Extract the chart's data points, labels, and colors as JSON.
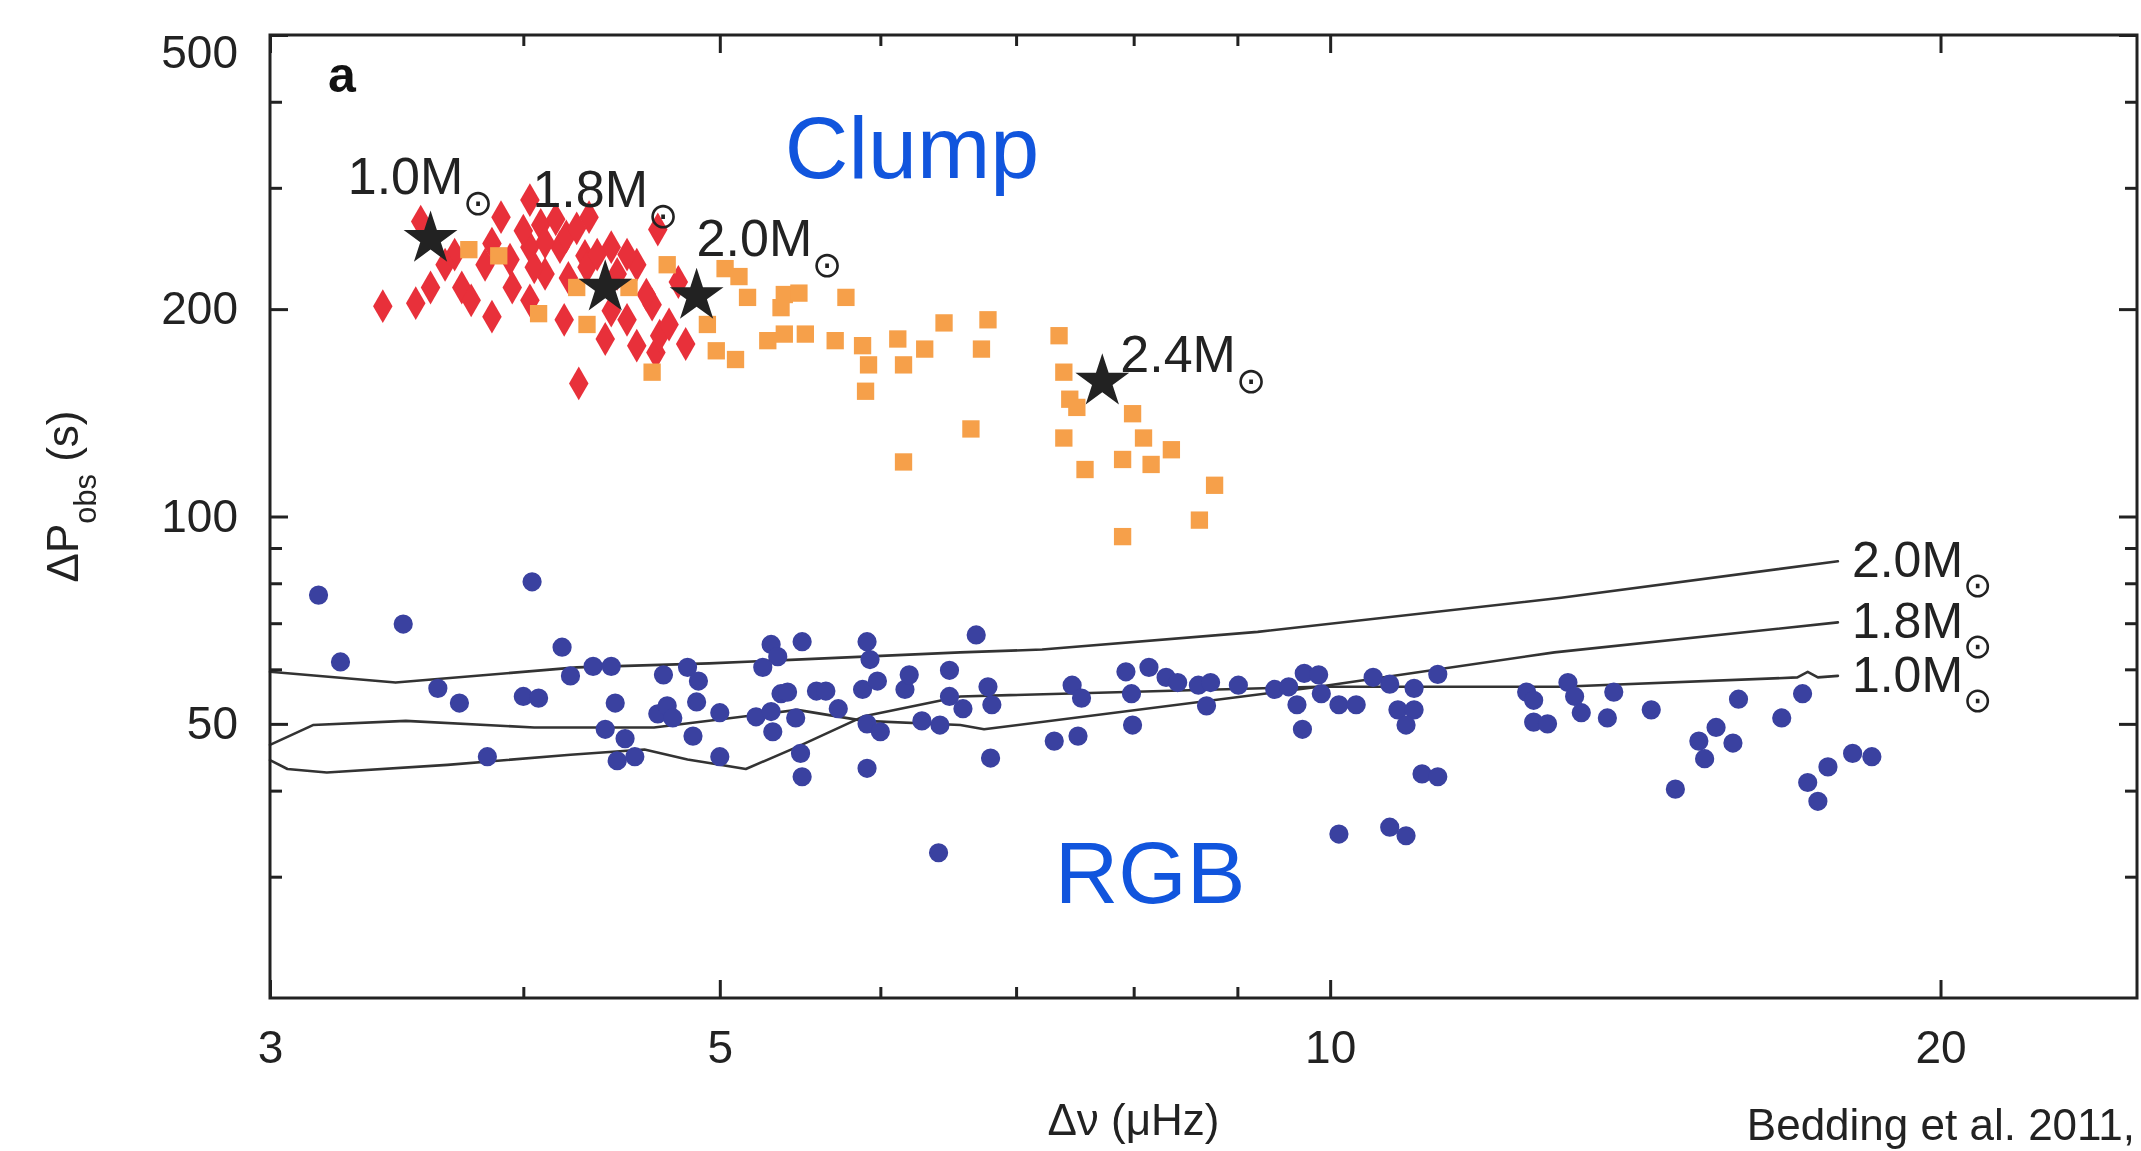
{
  "chart_data": {
    "type": "scatter",
    "xlabel": "Δν (μHz)",
    "ylabel": "ΔP$_{obs}$ (s)",
    "log": "xy",
    "xlim": [
      3,
      25
    ],
    "ylim": [
      20,
      500
    ],
    "xticks": [
      3,
      {
        "value": 4,
        "label": null
      },
      5,
      {
        "value": 6,
        "label": null
      },
      {
        "value": 7,
        "label": null
      },
      {
        "value": 8,
        "label": null
      },
      {
        "value": 9,
        "label": null
      },
      10,
      20
    ],
    "yticks": [
      {
        "value": 30,
        "label": null
      },
      {
        "value": 40,
        "label": null
      },
      50,
      {
        "value": 60,
        "label": null
      },
      {
        "value": 70,
        "label": null
      },
      {
        "value": 80,
        "label": null
      },
      {
        "value": 90,
        "label": null
      },
      100,
      200,
      {
        "value": 300,
        "label": null
      },
      {
        "value": 400,
        "label": null
      },
      500
    ],
    "annotations": [
      "a",
      "Clump",
      "RGB",
      "Bedding et al. 2011,",
      {
        "text": "1.0M$_{⊙}$",
        "x": 3.6,
        "y": 253
      },
      {
        "text": "1.8M$_{⊙}$",
        "x": 4.39,
        "y": 215
      },
      {
        "text": "2.0M$_{⊙}$",
        "x": 4.87,
        "y": 209
      },
      {
        "text": "2.4M$_{⊙}$",
        "x": 7.72,
        "y": 157
      }
    ],
    "series": [
      {
        "name": "2.0M$_{⊙}$",
        "type": "line",
        "color": "#333333",
        "x": [
          3.0,
          3.46,
          4.25,
          4.94,
          6.57,
          7.21,
          9.21,
          13.0,
          17.8
        ],
        "values": [
          59.5,
          57.4,
          60.4,
          61.2,
          63.5,
          64.1,
          68.0,
          76.2,
          86.1
        ]
      },
      {
        "name": "1.8M$_{⊙}$",
        "type": "line",
        "color": "#333333",
        "x": [
          3.0,
          3.15,
          3.5,
          4.05,
          4.64,
          5.46,
          5.89,
          6.57,
          6.75,
          9.87,
          12.9,
          17.8
        ],
        "values": [
          46.6,
          49.8,
          50.5,
          49.4,
          49.4,
          52.4,
          50.5,
          49.8,
          49.1,
          56.6,
          63.5,
          70.2
        ]
      },
      {
        "name": "1.0M$_{⊙}$",
        "type": "line",
        "color": "#333333",
        "x": [
          3.0,
          3.06,
          3.2,
          3.67,
          4.22,
          4.59,
          4.82,
          5.15,
          5.46,
          5.89,
          6.57,
          9.87,
          13.0,
          17.0,
          17.2,
          17.4,
          17.8
        ],
        "values": [
          44.3,
          43.0,
          42.5,
          43.6,
          45.1,
          45.9,
          44.4,
          43.0,
          46.3,
          51.3,
          54.8,
          56.6,
          56.6,
          58.4,
          59.5,
          58.4,
          58.7
        ]
      },
      {
        "type": "scatter",
        "marker": "circle",
        "color": "#3a41a0",
        "x": [
          3.17,
          3.25,
          3.49,
          3.63,
          3.72,
          3.84,
          4.04,
          4.0,
          4.07,
          4.18,
          4.22,
          4.33,
          4.42,
          4.44,
          4.39,
          4.49,
          4.45,
          4.54,
          4.69,
          4.66,
          4.71,
          4.74,
          4.82,
          4.88,
          4.87,
          4.85,
          5.0,
          5.0,
          5.25,
          5.3,
          5.34,
          5.49,
          5.21,
          5.3,
          5.31,
          5.36,
          5.4,
          5.45,
          5.48,
          5.49,
          5.58,
          5.64,
          5.72,
          5.91,
          5.93,
          5.88,
          5.98,
          5.91,
          6.0,
          5.91,
          6.17,
          6.2,
          6.29,
          6.42,
          6.41,
          6.49,
          6.49,
          6.69,
          6.59,
          6.78,
          6.81,
          6.8,
          7.31,
          7.46,
          7.54,
          7.51,
          7.93,
          7.98,
          7.99,
          8.14,
          8.3,
          8.41,
          8.61,
          8.73,
          8.69,
          9.01,
          9.39,
          9.54,
          9.71,
          9.87,
          9.63,
          9.69,
          9.9,
          10.1,
          10.3,
          10.5,
          10.7,
          11.0,
          10.8,
          11.0,
          10.9,
          11.3,
          11.1,
          11.3,
          10.1,
          10.7,
          10.9,
          12.5,
          12.6,
          12.6,
          12.8,
          13.1,
          13.2,
          13.3,
          13.8,
          13.7,
          14.4,
          14.8,
          15.2,
          15.5,
          15.3,
          15.8,
          15.9,
          16.7,
          17.1,
          17.2,
          17.4,
          17.6,
          18.1,
          18.5
        ],
        "values": [
          76.9,
          61.5,
          69.8,
          56.3,
          53.6,
          44.8,
          80.4,
          54.8,
          54.5,
          64.6,
          58.7,
          60.6,
          60.6,
          53.6,
          49.1,
          47.6,
          44.2,
          44.8,
          58.9,
          51.7,
          53.1,
          51.0,
          60.4,
          57.7,
          53.8,
          48.0,
          51.9,
          44.8,
          60.4,
          65.2,
          62.6,
          65.8,
          51.2,
          52.1,
          48.7,
          55.3,
          55.6,
          51.0,
          45.3,
          41.9,
          55.8,
          55.8,
          52.6,
          65.8,
          62.0,
          56.1,
          57.7,
          50.0,
          48.7,
          43.1,
          56.1,
          58.9,
          50.5,
          49.8,
          32.5,
          59.8,
          54.8,
          67.3,
          52.6,
          56.6,
          53.3,
          44.6,
          47.2,
          56.9,
          54.5,
          48.0,
          59.5,
          55.3,
          49.8,
          60.4,
          58.4,
          57.4,
          56.9,
          57.4,
          53.1,
          56.9,
          56.1,
          56.6,
          59.2,
          58.9,
          53.3,
          49.1,
          55.3,
          53.3,
          53.3,
          58.4,
          57.1,
          56.3,
          52.4,
          52.4,
          49.8,
          59.0,
          42.3,
          41.9,
          34.6,
          35.4,
          34.4,
          55.6,
          54.1,
          50.3,
          50.0,
          57.4,
          54.8,
          51.9,
          55.6,
          51.0,
          52.4,
          40.2,
          47.2,
          49.4,
          44.5,
          46.9,
          54.3,
          51.0,
          55.3,
          41.1,
          38.6,
          43.3,
          45.3,
          44.8
        ]
      },
      {
        "type": "scatter",
        "marker": "diamond",
        "color": "#e8303a",
        "x": [
          3.41,
          3.54,
          3.6,
          3.56,
          3.73,
          3.77,
          3.86,
          3.9,
          4.03,
          4.03,
          4.19,
          4.26,
          4.39,
          4.5,
          4.55,
          4.65,
          4.67,
          4.72,
          4.81,
          4.66,
          4.31,
          4.17,
          3.94,
          4.42,
          4.08,
          3.83,
          4.55,
          4.63,
          4.42,
          4.21,
          4.03,
          3.86,
          4.29,
          4.77,
          4.0,
          4.1,
          4.2,
          4.3,
          4.1,
          3.95,
          4.35,
          4.45,
          4.6,
          3.7,
          3.66,
          4.15,
          4.25,
          4.5,
          4.05
        ],
        "values": [
          202,
          204,
          215,
          268,
          215,
          206,
          195,
          272,
          288,
          206,
          193,
          156,
          181,
          193,
          177,
          173,
          183,
          190,
          178,
          261,
          272,
          246,
          236,
          246,
          265,
          232,
          232,
          203,
          199,
          222,
          246,
          249,
          239,
          219,
          260,
          250,
          255,
          230,
          225,
          215,
          240,
          225,
          210,
          240,
          232,
          270,
          262,
          240,
          230
        ]
      },
      {
        "type": "scatter",
        "marker": "square",
        "color": "#f6a04a",
        "x": [
          5.03,
          5.11,
          5.16,
          5.38,
          5.47,
          5.36,
          5.77,
          4.93,
          4.98,
          5.09,
          5.28,
          5.38,
          5.51,
          5.7,
          5.88,
          5.92,
          5.9,
          6.12,
          6.16,
          6.31,
          6.45,
          6.78,
          6.73,
          6.65,
          6.16,
          7.35,
          7.39,
          7.44,
          7.5,
          7.39,
          7.57,
          7.99,
          8.09,
          7.9,
          8.16,
          8.35,
          8.77,
          8.62,
          7.9,
          3.76,
          3.89,
          4.07,
          4.3,
          4.25,
          4.51,
          4.63,
          4.71
        ],
        "values": [
          229,
          223,
          208,
          210,
          211,
          201,
          208,
          190,
          174,
          169,
          180,
          184,
          184,
          180,
          177,
          166,
          152,
          181,
          166,
          175,
          191,
          193,
          175,
          134,
          120,
          183,
          162,
          148,
          144,
          130,
          117,
          141,
          130,
          121,
          119,
          125,
          111,
          98.8,
          93.5,
          244,
          239,
          197,
          190,
          215,
          215,
          162,
          232
        ]
      },
      {
        "type": "scatter",
        "marker": "star",
        "color": "#222222",
        "x": [
          3.6,
          4.39,
          4.87,
          7.72
        ],
        "values": [
          253,
          215,
          209,
          157
        ]
      }
    ]
  }
}
